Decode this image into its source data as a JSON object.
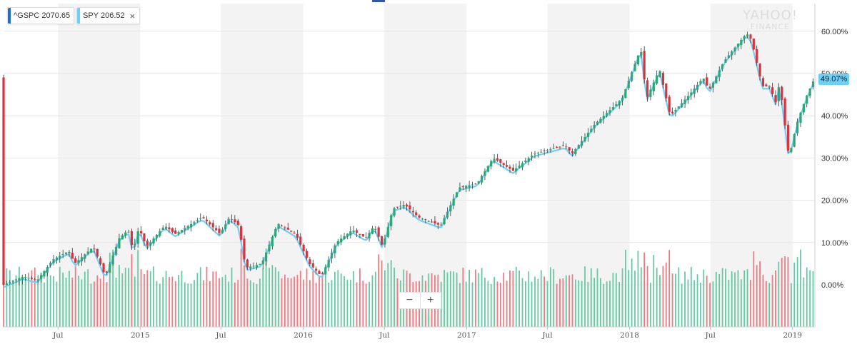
{
  "legend": [
    {
      "symbol": "^GSPC",
      "value": "2070.65",
      "color": "#1a6fd6",
      "removable": false
    },
    {
      "symbol": "SPY",
      "value": "206.52",
      "color": "#6fd0f7",
      "removable": true,
      "remove_icon": "×"
    }
  ],
  "watermark": {
    "line1": "YAHOO!",
    "line2": "FINANCE"
  },
  "zoom": {
    "minus": "−",
    "plus": "+"
  },
  "last_value_badge": "49.07%",
  "chart_data": {
    "type": "line",
    "title": "",
    "x_axis": {
      "type": "date",
      "range": [
        "2014-03-01",
        "2019-02-20"
      ],
      "tick_labels": [
        {
          "date": "2014-07-01",
          "label": "Jul"
        },
        {
          "date": "2015-01-01",
          "label": "2015"
        },
        {
          "date": "2015-07-01",
          "label": "Jul"
        },
        {
          "date": "2016-01-01",
          "label": "2016"
        },
        {
          "date": "2016-07-01",
          "label": "Jul"
        },
        {
          "date": "2017-01-01",
          "label": "2017"
        },
        {
          "date": "2017-07-01",
          "label": "Jul"
        },
        {
          "date": "2018-01-01",
          "label": "2018"
        },
        {
          "date": "2018-07-01",
          "label": "Jul"
        },
        {
          "date": "2019-01-01",
          "label": "2019"
        }
      ]
    },
    "y_axis": {
      "unit": "percent change",
      "range": [
        -10,
        68
      ],
      "tick_labels": [
        "0.00%",
        "10.00%",
        "20.00%",
        "30.00%",
        "40.00%",
        "50.00%",
        "60.00%"
      ],
      "tick_values": [
        0,
        10,
        20,
        30,
        40,
        50,
        60
      ],
      "position": "right",
      "grid": true
    },
    "shaded_periods": [
      [
        "2014-07-01",
        "2015-01-01"
      ],
      [
        "2015-07-01",
        "2016-01-01"
      ],
      [
        "2016-07-01",
        "2017-01-01"
      ],
      [
        "2017-07-01",
        "2018-01-01"
      ],
      [
        "2018-07-01",
        "2019-01-01"
      ]
    ],
    "series": [
      {
        "name": "^GSPC",
        "style": "candlestick",
        "values": [
          {
            "x": "2014-03-01",
            "y": 0.0
          },
          {
            "x": "2014-04-15",
            "y": 2.0
          },
          {
            "x": "2014-05-15",
            "y": 1.0
          },
          {
            "x": "2014-06-20",
            "y": 6.0
          },
          {
            "x": "2014-07-25",
            "y": 8.0
          },
          {
            "x": "2014-08-07",
            "y": 5.0
          },
          {
            "x": "2014-09-18",
            "y": 9.0
          },
          {
            "x": "2014-10-15",
            "y": 2.0
          },
          {
            "x": "2014-11-15",
            "y": 11.0
          },
          {
            "x": "2014-12-05",
            "y": 13.0
          },
          {
            "x": "2014-12-16",
            "y": 8.0
          },
          {
            "x": "2014-12-29",
            "y": 13.5
          },
          {
            "x": "2015-01-15",
            "y": 9.0
          },
          {
            "x": "2015-02-25",
            "y": 14.0
          },
          {
            "x": "2015-03-20",
            "y": 12.0
          },
          {
            "x": "2015-05-20",
            "y": 16.0
          },
          {
            "x": "2015-06-29",
            "y": 12.0
          },
          {
            "x": "2015-07-20",
            "y": 16.0
          },
          {
            "x": "2015-08-10",
            "y": 14.0
          },
          {
            "x": "2015-08-25",
            "y": 4.0
          },
          {
            "x": "2015-09-30",
            "y": 5.0
          },
          {
            "x": "2015-11-05",
            "y": 14.5
          },
          {
            "x": "2015-12-15",
            "y": 12.0
          },
          {
            "x": "2016-01-15",
            "y": 5.0
          },
          {
            "x": "2016-02-11",
            "y": 2.0
          },
          {
            "x": "2016-03-15",
            "y": 10.0
          },
          {
            "x": "2016-04-20",
            "y": 13.0
          },
          {
            "x": "2016-05-20",
            "y": 11.0
          },
          {
            "x": "2016-06-08",
            "y": 14.0
          },
          {
            "x": "2016-06-27",
            "y": 9.0
          },
          {
            "x": "2016-07-20",
            "y": 18.0
          },
          {
            "x": "2016-08-15",
            "y": 19.0
          },
          {
            "x": "2016-09-15",
            "y": 16.0
          },
          {
            "x": "2016-11-04",
            "y": 14.0
          },
          {
            "x": "2016-12-15",
            "y": 23.0
          },
          {
            "x": "2017-01-25",
            "y": 24.0
          },
          {
            "x": "2017-03-01",
            "y": 30.0
          },
          {
            "x": "2017-04-15",
            "y": 27.0
          },
          {
            "x": "2017-06-01",
            "y": 31.0
          },
          {
            "x": "2017-08-10",
            "y": 33.0
          },
          {
            "x": "2017-08-25",
            "y": 31.0
          },
          {
            "x": "2017-10-15",
            "y": 38.0
          },
          {
            "x": "2017-12-15",
            "y": 44.0
          },
          {
            "x": "2018-01-26",
            "y": 56.0
          },
          {
            "x": "2018-02-08",
            "y": 44.0
          },
          {
            "x": "2018-03-09",
            "y": 51.0
          },
          {
            "x": "2018-04-02",
            "y": 40.0
          },
          {
            "x": "2018-05-15",
            "y": 45.0
          },
          {
            "x": "2018-06-15",
            "y": 49.0
          },
          {
            "x": "2018-06-28",
            "y": 46.0
          },
          {
            "x": "2018-08-01",
            "y": 53.0
          },
          {
            "x": "2018-09-20",
            "y": 59.5
          },
          {
            "x": "2018-10-01",
            "y": 58.0
          },
          {
            "x": "2018-10-25",
            "y": 47.0
          },
          {
            "x": "2018-11-10",
            "y": 47.0
          },
          {
            "x": "2018-11-25",
            "y": 43.0
          },
          {
            "x": "2018-12-03",
            "y": 48.0
          },
          {
            "x": "2018-12-24",
            "y": 30.0
          },
          {
            "x": "2019-01-10",
            "y": 38.0
          },
          {
            "x": "2019-01-30",
            "y": 44.0
          },
          {
            "x": "2019-02-20",
            "y": 49.07
          }
        ],
        "up_color": "#2aa876",
        "down_color": "#e0303b"
      },
      {
        "name": "SPY",
        "style": "line",
        "color": "#6fd0f7",
        "values": "same as ^GSPC"
      }
    ],
    "volume": {
      "style": "bars",
      "up_color": "#66c9a4",
      "down_color": "#ee7b83"
    }
  }
}
